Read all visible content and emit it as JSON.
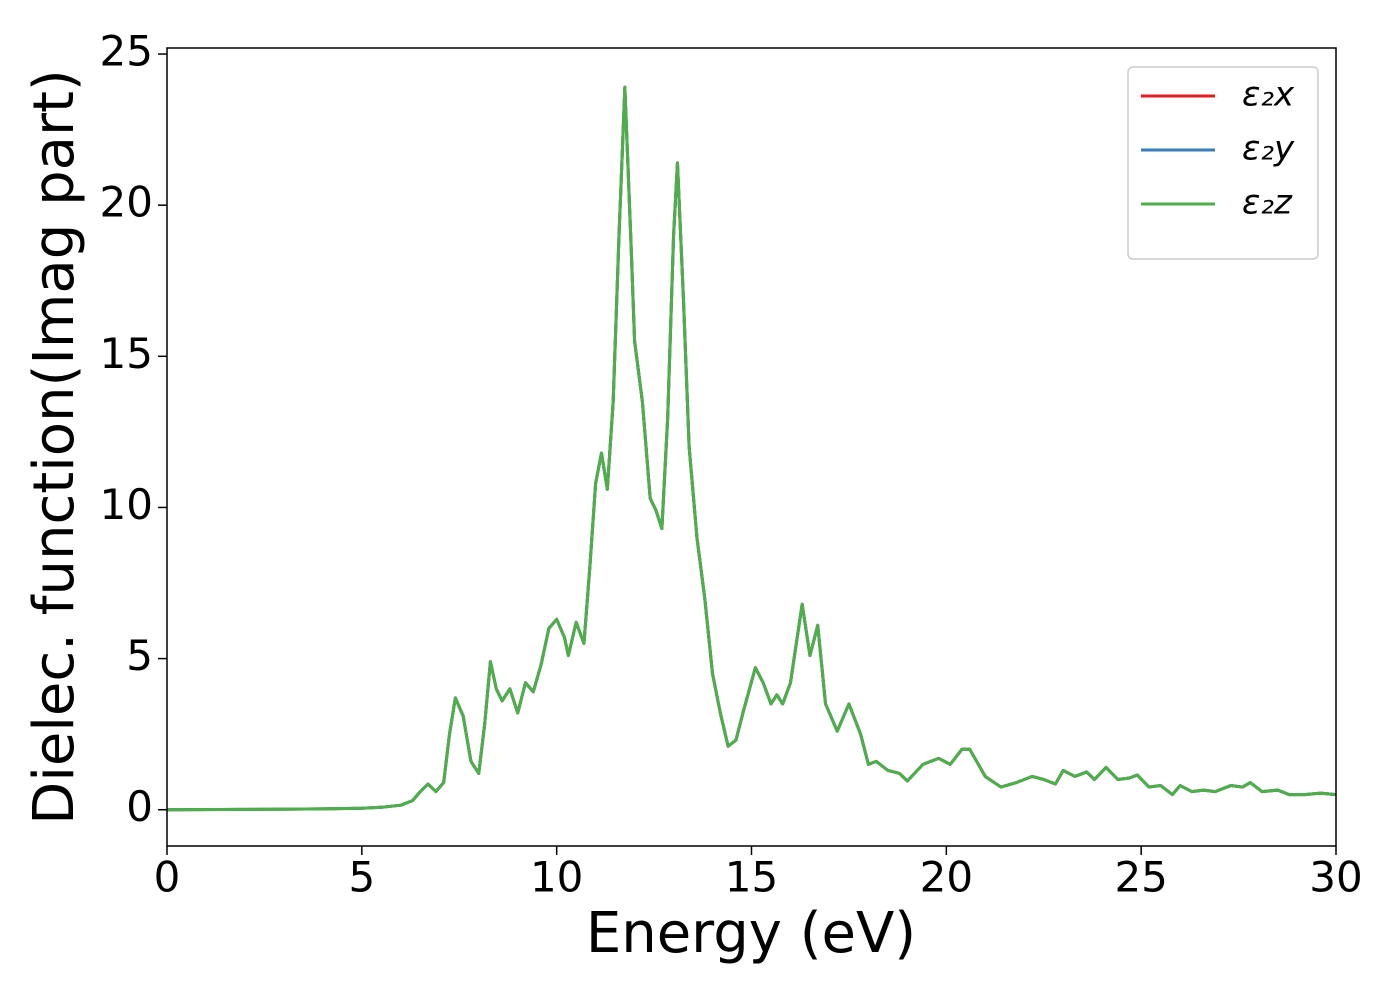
{
  "chart_data": {
    "type": "line",
    "xlabel": "Energy (eV)",
    "ylabel": "Dielec. function(Imag part)",
    "x": [
      0,
      2,
      4,
      5,
      5.5,
      6,
      6.3,
      6.5,
      6.7,
      6.9,
      7.1,
      7.25,
      7.4,
      7.6,
      7.8,
      8.0,
      8.15,
      8.3,
      8.45,
      8.6,
      8.8,
      9.0,
      9.2,
      9.4,
      9.6,
      9.8,
      10.0,
      10.2,
      10.3,
      10.5,
      10.7,
      10.85,
      11.0,
      11.15,
      11.3,
      11.45,
      11.6,
      11.75,
      11.9,
      12.0,
      12.2,
      12.4,
      12.55,
      12.7,
      12.85,
      13.0,
      13.1,
      13.25,
      13.4,
      13.6,
      13.8,
      14.0,
      14.2,
      14.4,
      14.6,
      14.8,
      15.1,
      15.3,
      15.5,
      15.65,
      15.8,
      16.0,
      16.3,
      16.5,
      16.7,
      16.9,
      17.2,
      17.5,
      17.8,
      18.0,
      18.2,
      18.5,
      18.8,
      19.0,
      19.4,
      19.8,
      20.1,
      20.4,
      20.6,
      21.0,
      21.4,
      21.8,
      22.2,
      22.5,
      22.8,
      23.0,
      23.3,
      23.6,
      23.8,
      24.1,
      24.4,
      24.7,
      24.9,
      25.2,
      25.5,
      25.8,
      26.0,
      26.3,
      26.6,
      26.9,
      27.3,
      27.6,
      27.8,
      28.1,
      28.5,
      28.8,
      29.2,
      29.6,
      30.0
    ],
    "series": [
      {
        "name": "ε₂x",
        "color": "#e41a1c",
        "values": [
          0,
          0.01,
          0.03,
          0.05,
          0.08,
          0.15,
          0.3,
          0.6,
          0.85,
          0.6,
          0.9,
          2.5,
          3.7,
          3.1,
          1.6,
          1.2,
          2.8,
          4.9,
          4.0,
          3.6,
          4.0,
          3.2,
          4.2,
          3.9,
          4.8,
          6.0,
          6.3,
          5.7,
          5.1,
          6.2,
          5.5,
          8,
          10.8,
          11.8,
          10.6,
          13.5,
          19,
          23.9,
          19,
          15.5,
          13.5,
          10.3,
          9.9,
          9.3,
          13,
          19,
          21.4,
          17,
          12,
          9,
          7,
          4.5,
          3.2,
          2.1,
          2.3,
          3.3,
          4.7,
          4.2,
          3.5,
          3.8,
          3.5,
          4.2,
          6.8,
          5.1,
          6.1,
          3.5,
          2.6,
          3.5,
          2.5,
          1.5,
          1.6,
          1.3,
          1.2,
          0.95,
          1.5,
          1.7,
          1.5,
          2.0,
          2.0,
          1.1,
          0.75,
          0.9,
          1.1,
          1.0,
          0.85,
          1.3,
          1.1,
          1.25,
          1.0,
          1.4,
          1.0,
          1.05,
          1.15,
          0.75,
          0.8,
          0.5,
          0.8,
          0.6,
          0.65,
          0.6,
          0.8,
          0.75,
          0.9,
          0.6,
          0.65,
          0.5,
          0.5,
          0.55,
          0.5
        ]
      },
      {
        "name": "ε₂y",
        "color": "#377eb8",
        "values": [
          0,
          0.01,
          0.03,
          0.05,
          0.08,
          0.15,
          0.3,
          0.6,
          0.85,
          0.6,
          0.9,
          2.5,
          3.7,
          3.1,
          1.6,
          1.2,
          2.8,
          4.9,
          4.0,
          3.6,
          4.0,
          3.2,
          4.2,
          3.9,
          4.8,
          6.0,
          6.3,
          5.7,
          5.1,
          6.2,
          5.5,
          8,
          10.8,
          11.8,
          10.6,
          13.5,
          19,
          23.9,
          19,
          15.5,
          13.5,
          10.3,
          9.9,
          9.3,
          13,
          19,
          21.4,
          17,
          12,
          9,
          7,
          4.5,
          3.2,
          2.1,
          2.3,
          3.3,
          4.7,
          4.2,
          3.5,
          3.8,
          3.5,
          4.2,
          6.8,
          5.1,
          6.1,
          3.5,
          2.6,
          3.5,
          2.5,
          1.5,
          1.6,
          1.3,
          1.2,
          0.95,
          1.5,
          1.7,
          1.5,
          2.0,
          2.0,
          1.1,
          0.75,
          0.9,
          1.1,
          1.0,
          0.85,
          1.3,
          1.1,
          1.25,
          1.0,
          1.4,
          1.0,
          1.05,
          1.15,
          0.75,
          0.8,
          0.5,
          0.8,
          0.6,
          0.65,
          0.6,
          0.8,
          0.75,
          0.9,
          0.6,
          0.65,
          0.5,
          0.5,
          0.55,
          0.5
        ]
      },
      {
        "name": "ε₂z",
        "color": "#4daf4a",
        "values": [
          0,
          0.01,
          0.03,
          0.05,
          0.08,
          0.15,
          0.3,
          0.6,
          0.85,
          0.6,
          0.9,
          2.5,
          3.7,
          3.1,
          1.6,
          1.2,
          2.8,
          4.9,
          4.0,
          3.6,
          4.0,
          3.2,
          4.2,
          3.9,
          4.8,
          6.0,
          6.3,
          5.7,
          5.1,
          6.2,
          5.5,
          8,
          10.8,
          11.8,
          10.6,
          13.5,
          19,
          23.9,
          19,
          15.5,
          13.5,
          10.3,
          9.9,
          9.3,
          13,
          19,
          21.4,
          17,
          12,
          9,
          7,
          4.5,
          3.2,
          2.1,
          2.3,
          3.3,
          4.7,
          4.2,
          3.5,
          3.8,
          3.5,
          4.2,
          6.8,
          5.1,
          6.1,
          3.5,
          2.6,
          3.5,
          2.5,
          1.5,
          1.6,
          1.3,
          1.2,
          0.95,
          1.5,
          1.7,
          1.5,
          2.0,
          2.0,
          1.1,
          0.75,
          0.9,
          1.1,
          1.0,
          0.85,
          1.3,
          1.1,
          1.25,
          1.0,
          1.4,
          1.0,
          1.05,
          1.15,
          0.75,
          0.8,
          0.5,
          0.8,
          0.6,
          0.65,
          0.6,
          0.8,
          0.75,
          0.9,
          0.6,
          0.65,
          0.5,
          0.5,
          0.55,
          0.5
        ]
      }
    ],
    "xlim": [
      0,
      30
    ],
    "ylim": [
      -1.2,
      25.2
    ],
    "xticks": [
      0,
      5,
      10,
      15,
      20,
      25,
      30
    ],
    "yticks": [
      0,
      5,
      10,
      15,
      20,
      25
    ],
    "grid": false,
    "legend": "upper right"
  }
}
